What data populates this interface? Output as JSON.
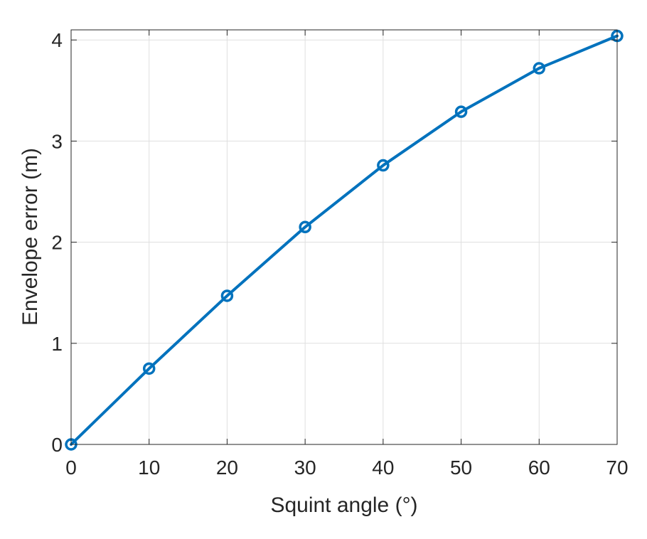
{
  "chart_data": {
    "type": "line",
    "title": "",
    "xlabel": "Squint angle (°)",
    "ylabel": "Envelope error (m)",
    "xlim": [
      0,
      70
    ],
    "ylim": [
      0,
      4.1
    ],
    "xticks": [
      0,
      10,
      20,
      30,
      40,
      50,
      60,
      70
    ],
    "yticks": [
      0,
      1,
      2,
      3,
      4
    ],
    "xtick_labels": [
      "0",
      "10",
      "20",
      "30",
      "40",
      "50",
      "60",
      "70"
    ],
    "ytick_labels": [
      "0",
      "1",
      "2",
      "3",
      "4"
    ],
    "grid": true,
    "legend": null,
    "series": [
      {
        "color": "#0072BD",
        "marker": "circle",
        "x": [
          0,
          10,
          20,
          30,
          40,
          50,
          60,
          70
        ],
        "y": [
          0,
          0.75,
          1.47,
          2.15,
          2.76,
          3.29,
          3.72,
          4.04
        ]
      }
    ]
  }
}
